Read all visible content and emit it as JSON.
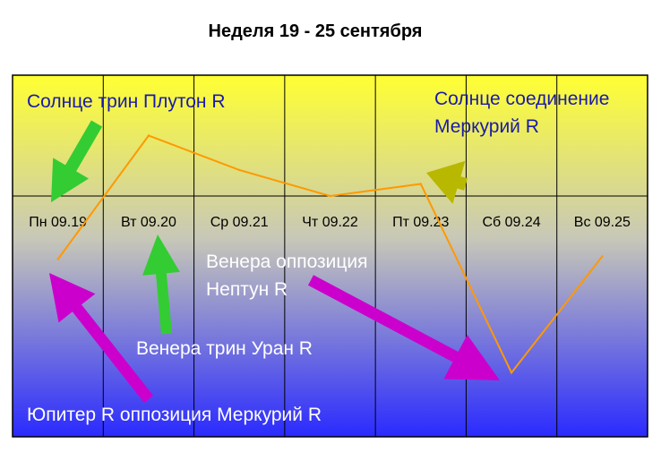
{
  "chart_data": {
    "type": "line",
    "title": "Неделя 19 - 25 сентября",
    "categories": [
      "Пн 09.19",
      "Вт 09.20",
      "Ср 09.21",
      "Чт 09.22",
      "Пт 09.23",
      "Сб 09.24",
      "Вс 09.25"
    ],
    "series": [
      {
        "values": [
          -0.68,
          0.65,
          0.28,
          0.0,
          0.13,
          -1.9,
          -0.65
        ]
      }
    ],
    "ylim": [
      -2.5,
      1.3
    ],
    "grid": true,
    "colors": {
      "line": "#ff9900",
      "bg_top": "#ffff33",
      "bg_mid": "#c8c8b8",
      "bg_bottom": "#2a2aff",
      "green_arrow": "#33cc33",
      "olive_arrow": "#b8b800",
      "magenta_arrow": "#cc00cc"
    },
    "annotations": [
      {
        "text": "Солнце трин Плутон R",
        "color": "#1a1aaa"
      },
      {
        "text": "Солнце соединение",
        "color": "#1a1aaa"
      },
      {
        "text": "Меркурий R",
        "color": "#1a1aaa"
      },
      {
        "text": "Венера оппозиция",
        "color": "#ffffff"
      },
      {
        "text": "Нептун R",
        "color": "#ffffff"
      },
      {
        "text": "Венера трин Уран R",
        "color": "#ffffff"
      },
      {
        "text": "Юпитер R оппозиция Меркурий R",
        "color": "#ffffff"
      }
    ]
  }
}
